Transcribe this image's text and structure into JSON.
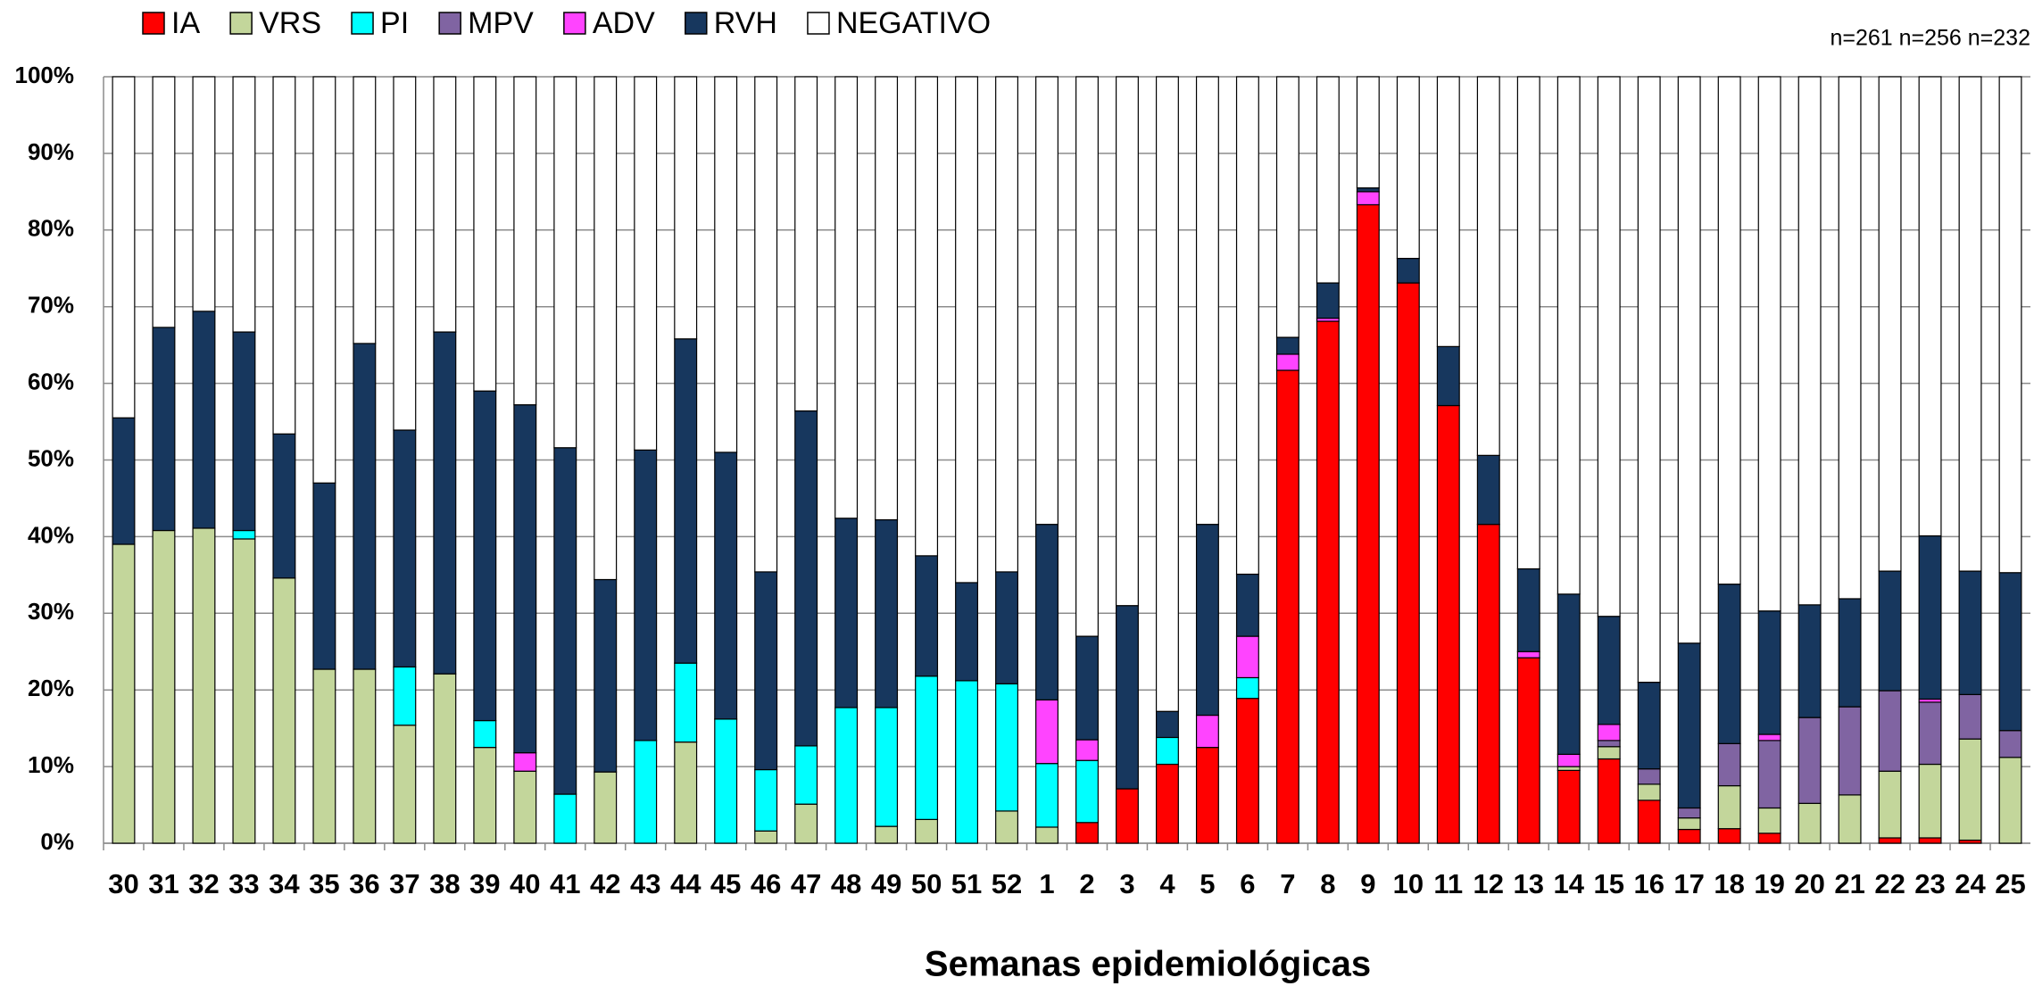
{
  "chart_data": {
    "type": "stacked_bar",
    "x_label": "Semanas epidemiológicas",
    "annotation": "n=261 n=256 n=232",
    "categories": [
      "30",
      "31",
      "32",
      "33",
      "34",
      "35",
      "36",
      "37",
      "38",
      "39",
      "40",
      "41",
      "42",
      "43",
      "44",
      "45",
      "46",
      "47",
      "48",
      "49",
      "50",
      "51",
      "52",
      "1",
      "2",
      "3",
      "4",
      "5",
      "6",
      "7",
      "8",
      "9",
      "10",
      "11",
      "12",
      "13",
      "14",
      "15",
      "16",
      "17",
      "18",
      "19",
      "20",
      "21",
      "22",
      "23",
      "24",
      "25"
    ],
    "series": [
      {
        "name": "IA",
        "color": "#ff0000",
        "values": [
          0,
          0,
          0,
          0,
          0,
          0,
          0,
          0,
          0,
          0,
          0,
          0,
          0,
          0,
          0,
          0,
          0,
          0,
          0,
          0,
          0,
          0,
          0,
          0,
          2.7,
          7.1,
          10.3,
          12.5,
          18.9,
          61.7,
          68.1,
          83.3,
          73.1,
          57.1,
          41.6,
          24.2,
          9.5,
          11,
          5.6,
          1.8,
          1.9,
          1.3,
          0,
          0,
          0.7,
          0.7,
          0.4,
          0
        ]
      },
      {
        "name": "VRS",
        "color": "#c3d69b",
        "values": [
          39,
          40.8,
          41.1,
          39.7,
          34.6,
          22.7,
          22.7,
          15.4,
          22.1,
          12.5,
          9.4,
          0,
          9.3,
          0,
          13.2,
          0,
          1.6,
          5.1,
          0,
          2.2,
          3.1,
          0,
          4.2,
          2.1,
          0,
          0,
          0,
          0,
          0,
          0,
          0,
          0,
          0,
          0,
          0,
          0,
          0.5,
          1.6,
          2.1,
          1.5,
          5.6,
          3.3,
          5.2,
          6.3,
          8.7,
          9.6,
          13.2,
          11.2
        ]
      },
      {
        "name": "PI",
        "color": "#00ffff",
        "values": [
          0,
          0,
          0,
          1.1,
          0,
          0,
          0,
          7.6,
          0,
          3.5,
          0,
          6.4,
          0,
          13.4,
          10.3,
          16.2,
          8,
          7.6,
          17.7,
          15.5,
          18.7,
          21.2,
          16.6,
          8.3,
          8.1,
          0,
          3.5,
          0,
          2.7,
          0,
          0,
          0,
          0,
          0,
          0,
          0,
          0,
          0,
          0,
          0,
          0,
          0,
          0,
          0,
          0,
          0,
          0,
          0
        ]
      },
      {
        "name": "MPV",
        "color": "#8064a2",
        "values": [
          0,
          0,
          0,
          0,
          0,
          0,
          0,
          0,
          0,
          0,
          0,
          0,
          0,
          0,
          0,
          0,
          0,
          0,
          0,
          0,
          0,
          0,
          0,
          0,
          0,
          0,
          0,
          0,
          0,
          0,
          0,
          0,
          0,
          0,
          0,
          0,
          0,
          0.8,
          2.0,
          1.3,
          5.5,
          8.8,
          11.2,
          11.5,
          10.5,
          8.1,
          5.8,
          3.5
        ]
      },
      {
        "name": "ADV",
        "color": "#ff44ff",
        "values": [
          0,
          0,
          0,
          0,
          0,
          0,
          0,
          0,
          0,
          0,
          2.4,
          0,
          0,
          0,
          0,
          0,
          0,
          0,
          0,
          0,
          0,
          0,
          0,
          8.3,
          2.7,
          0,
          0,
          4.2,
          5.4,
          2.1,
          0.4,
          1.7,
          0,
          0,
          0,
          0.8,
          1.6,
          2.1,
          0,
          0,
          0,
          0.8,
          0,
          0,
          0,
          0.4,
          0,
          0
        ]
      },
      {
        "name": "RVH",
        "color": "#17375e",
        "values": [
          16.5,
          26.5,
          28.3,
          25.9,
          18.8,
          24.3,
          42.5,
          30.9,
          44.6,
          43,
          45.4,
          45.2,
          25.1,
          37.9,
          42.3,
          34.8,
          25.8,
          43.7,
          24.7,
          24.5,
          15.7,
          12.8,
          14.6,
          22.9,
          13.5,
          23.9,
          3.4,
          24.9,
          8.1,
          2.2,
          4.6,
          0.5,
          3.2,
          7.7,
          9,
          10.8,
          20.9,
          14.1,
          11.3,
          21.5,
          20.8,
          16.1,
          14.7,
          14.1,
          15.6,
          21.3,
          16.1,
          20.6
        ]
      },
      {
        "name": "NEGATIVO",
        "color": "#ffffff",
        "values": [
          44.5,
          32.7,
          30.6,
          33.3,
          46.6,
          53,
          34.8,
          46.1,
          33.3,
          41,
          42.8,
          48.4,
          65.6,
          48.7,
          34.2,
          49,
          64.6,
          43.6,
          57.6,
          57.8,
          62.5,
          66,
          64.6,
          58.4,
          73,
          69,
          82.8,
          58.4,
          64.9,
          34,
          26.9,
          14.5,
          23.7,
          35.2,
          49.4,
          64.2,
          67.5,
          70.4,
          79,
          73.9,
          66.2,
          69.7,
          68.9,
          68.1,
          64.5,
          59.9,
          64.5,
          64.7
        ]
      }
    ],
    "ylim": [
      0,
      100
    ],
    "yticks": [
      {
        "value": 0,
        "label": "0%"
      },
      {
        "value": 10,
        "label": "10%"
      },
      {
        "value": 20,
        "label": "20%"
      },
      {
        "value": 30,
        "label": "30%"
      },
      {
        "value": 40,
        "label": "40%"
      },
      {
        "value": 50,
        "label": "50%"
      },
      {
        "value": 60,
        "label": "60%"
      },
      {
        "value": 70,
        "label": "70%"
      },
      {
        "value": 80,
        "label": "80%"
      },
      {
        "value": 90,
        "label": "90%"
      },
      {
        "value": 100,
        "label": "100%"
      }
    ],
    "grid": true,
    "legend": "top"
  }
}
